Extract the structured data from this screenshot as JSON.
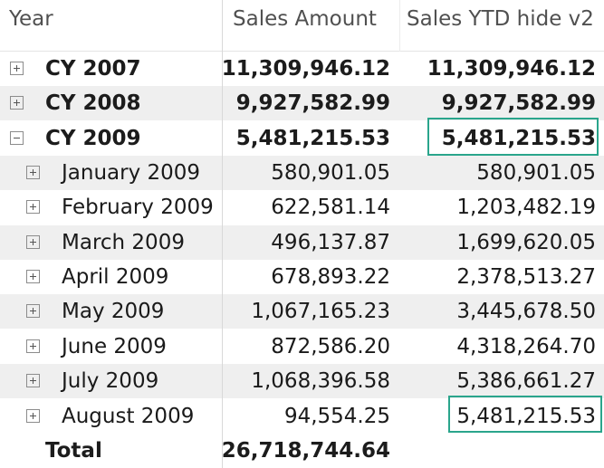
{
  "header": {
    "year": "Year",
    "sales_amount": "Sales Amount",
    "sales_ytd": "Sales YTD hide v2"
  },
  "rows": [
    {
      "label": "CY 2007",
      "sales": "11,309,946.12",
      "ytd": "11,309,946.12",
      "level": 0,
      "expanded": false,
      "bold": true
    },
    {
      "label": "CY 2008",
      "sales": "9,927,582.99",
      "ytd": "9,927,582.99",
      "level": 0,
      "expanded": false,
      "bold": true
    },
    {
      "label": "CY 2009",
      "sales": "5,481,215.53",
      "ytd": "5,481,215.53",
      "level": 0,
      "expanded": true,
      "bold": true,
      "highlighted": true
    },
    {
      "label": "January 2009",
      "sales": "580,901.05",
      "ytd": "580,901.05",
      "level": 1,
      "expanded": false
    },
    {
      "label": "February 2009",
      "sales": "622,581.14",
      "ytd": "1,203,482.19",
      "level": 1,
      "expanded": false
    },
    {
      "label": "March 2009",
      "sales": "496,137.87",
      "ytd": "1,699,620.05",
      "level": 1,
      "expanded": false
    },
    {
      "label": "April 2009",
      "sales": "678,893.22",
      "ytd": "2,378,513.27",
      "level": 1,
      "expanded": false
    },
    {
      "label": "May 2009",
      "sales": "1,067,165.23",
      "ytd": "3,445,678.50",
      "level": 1,
      "expanded": false
    },
    {
      "label": "June 2009",
      "sales": "872,586.20",
      "ytd": "4,318,264.70",
      "level": 1,
      "expanded": false
    },
    {
      "label": "July 2009",
      "sales": "1,068,396.58",
      "ytd": "5,386,661.27",
      "level": 1,
      "expanded": false
    },
    {
      "label": "August 2009",
      "sales": "94,554.25",
      "ytd": "5,481,215.53",
      "level": 1,
      "expanded": false,
      "highlighted": true
    }
  ],
  "total": {
    "label": "Total",
    "sales": "26,718,744.64",
    "ytd": ""
  },
  "colors": {
    "highlight": "#2aa58c",
    "row_shade": "#efefef"
  }
}
